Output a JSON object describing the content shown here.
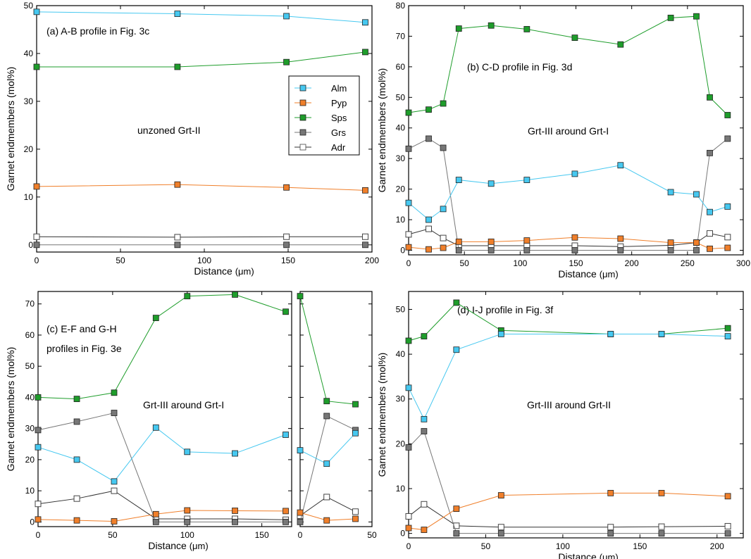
{
  "figure": {
    "colors": {
      "Alm": "#46c8f0",
      "Pyp": "#f07f2a",
      "Sps": "#1e9d2b",
      "Grs": "#777777",
      "Adr": "#333333"
    },
    "legend": [
      "Alm",
      "Pyp",
      "Sps",
      "Grs",
      "Adr"
    ],
    "unit_label": "(μm)"
  },
  "chart_data": [
    {
      "id": "a",
      "type": "line",
      "ylabel": "Garnet endmembers (mol%)",
      "xlabel": "Distance",
      "xlim": [
        0,
        200
      ],
      "ylim": [
        -1.5,
        50
      ],
      "xticks": [
        0,
        50,
        100,
        150,
        200
      ],
      "yticks": [
        0,
        10,
        20,
        30,
        40,
        50
      ],
      "annotations": [
        "(a) A-B profile in Fig. 3c",
        "unzoned Grt-II"
      ],
      "x": [
        0,
        84,
        149,
        196
      ],
      "series": [
        {
          "name": "Alm",
          "values": [
            48.7,
            48.3,
            47.8,
            46.5
          ]
        },
        {
          "name": "Pyp",
          "values": [
            12.2,
            12.6,
            12.0,
            11.4
          ]
        },
        {
          "name": "Sps",
          "values": [
            37.2,
            37.2,
            38.2,
            40.3
          ]
        },
        {
          "name": "Grs",
          "values": [
            0,
            0,
            0,
            0
          ]
        },
        {
          "name": "Adr",
          "values": [
            1.7,
            1.6,
            1.7,
            1.7
          ]
        }
      ]
    },
    {
      "id": "b",
      "type": "line",
      "ylabel": "Garnet endmembers (mol%)",
      "xlabel": "Distance",
      "xlim": [
        0,
        300
      ],
      "ylim": [
        -1.5,
        80
      ],
      "xticks": [
        0,
        50,
        100,
        150,
        200,
        250,
        300
      ],
      "yticks": [
        0,
        10,
        20,
        30,
        40,
        50,
        60,
        70,
        80
      ],
      "annotations": [
        "(b) C-D profile in Fig. 3d",
        "Grt-III around Grt-I"
      ],
      "x": [
        0,
        18,
        31,
        45,
        74,
        106,
        149,
        190,
        235,
        258,
        270,
        286
      ],
      "series": [
        {
          "name": "Alm",
          "values": [
            15.5,
            10,
            13.5,
            23,
            21.8,
            23,
            25,
            27.8,
            19,
            18.3,
            12.5,
            14.3
          ]
        },
        {
          "name": "Pyp",
          "values": [
            1,
            0.3,
            0.8,
            2.8,
            2.8,
            3.2,
            4.2,
            3.8,
            2.5,
            2.5,
            0.5,
            0.8
          ]
        },
        {
          "name": "Sps",
          "values": [
            45,
            46,
            48,
            72.5,
            73.5,
            72.3,
            69.5,
            67.3,
            76,
            76.5,
            50,
            44.2
          ]
        },
        {
          "name": "Grs",
          "values": [
            33.2,
            36.5,
            33.5,
            0,
            0,
            0,
            0,
            0,
            0,
            0,
            31.8,
            36.5
          ]
        },
        {
          "name": "Adr",
          "values": [
            5.2,
            7.0,
            4.0,
            1.5,
            1.5,
            1.5,
            1.5,
            1.2,
            1.6,
            2.5,
            5.5,
            4.3
          ]
        }
      ]
    },
    {
      "id": "c1",
      "type": "line",
      "ylabel": "Garnet endmembers (mol%)",
      "xlabel": "Distance",
      "xlim": [
        0,
        170
      ],
      "ylim": [
        -1.5,
        74
      ],
      "xticks": [
        0,
        50,
        100,
        150
      ],
      "yticks": [
        0,
        10,
        20,
        30,
        40,
        50,
        60,
        70
      ],
      "annotations": [
        "(c) E-F and G-H",
        "profiles in Fig. 3e",
        "Grt-III around Grt-I"
      ],
      "x": [
        0,
        26,
        51,
        79,
        100,
        132,
        166
      ],
      "series": [
        {
          "name": "Alm",
          "values": [
            24,
            20,
            13,
            30.3,
            22.5,
            22,
            28
          ]
        },
        {
          "name": "Pyp",
          "values": [
            0.8,
            0.5,
            0.2,
            2.5,
            3.7,
            3.6,
            3.5
          ]
        },
        {
          "name": "Sps",
          "values": [
            40,
            39.5,
            41.5,
            65.5,
            72.5,
            73,
            67.5
          ]
        },
        {
          "name": "Grs",
          "values": [
            29.5,
            32.2,
            35,
            0,
            0,
            0,
            0
          ]
        },
        {
          "name": "Adr",
          "values": [
            5.8,
            7.5,
            10,
            1,
            1,
            1,
            0.7
          ]
        }
      ]
    },
    {
      "id": "c2",
      "type": "line",
      "xlim": [
        0,
        50
      ],
      "ylim": [
        -1.5,
        74
      ],
      "xticks": [
        0,
        50
      ],
      "yticks": [
        0,
        10,
        20,
        30,
        40,
        50,
        60,
        70
      ],
      "x": [
        0,
        18.5,
        38.5
      ],
      "series": [
        {
          "name": "Alm",
          "values": [
            23,
            18.7,
            28.5
          ]
        },
        {
          "name": "Pyp",
          "values": [
            3,
            0.5,
            1
          ]
        },
        {
          "name": "Sps",
          "values": [
            72.5,
            38.8,
            37.8
          ]
        },
        {
          "name": "Grs",
          "values": [
            0,
            34,
            29.5
          ]
        },
        {
          "name": "Adr",
          "values": [
            2,
            8,
            3.3
          ]
        }
      ]
    },
    {
      "id": "d",
      "type": "line",
      "ylabel": "Garnet endmembers (mol%)",
      "xlabel": "Distance",
      "xlim": [
        0,
        217
      ],
      "ylim": [
        -1,
        54
      ],
      "xticks": [
        0,
        50,
        100,
        150,
        200
      ],
      "yticks": [
        0,
        10,
        20,
        30,
        40,
        50
      ],
      "annotations": [
        "(d) I-J profile in Fig. 3f",
        "Grt-III around Grt-II"
      ],
      "x": [
        0,
        10,
        31,
        60,
        131,
        164,
        207
      ],
      "series": [
        {
          "name": "Alm",
          "values": [
            32.5,
            25.5,
            41,
            44.5,
            44.5,
            44.5,
            44
          ]
        },
        {
          "name": "Pyp",
          "values": [
            1.2,
            0.8,
            5.5,
            8.5,
            9,
            9,
            8.3
          ]
        },
        {
          "name": "Sps",
          "values": [
            43,
            44,
            51.5,
            45.3,
            44.5,
            44.5,
            45.8
          ]
        },
        {
          "name": "Grs",
          "values": [
            19.2,
            22.8,
            0,
            0,
            0,
            0,
            0
          ]
        },
        {
          "name": "Adr",
          "values": [
            3.8,
            6.5,
            1.7,
            1.4,
            1.4,
            1.5,
            1.6
          ]
        }
      ]
    }
  ]
}
